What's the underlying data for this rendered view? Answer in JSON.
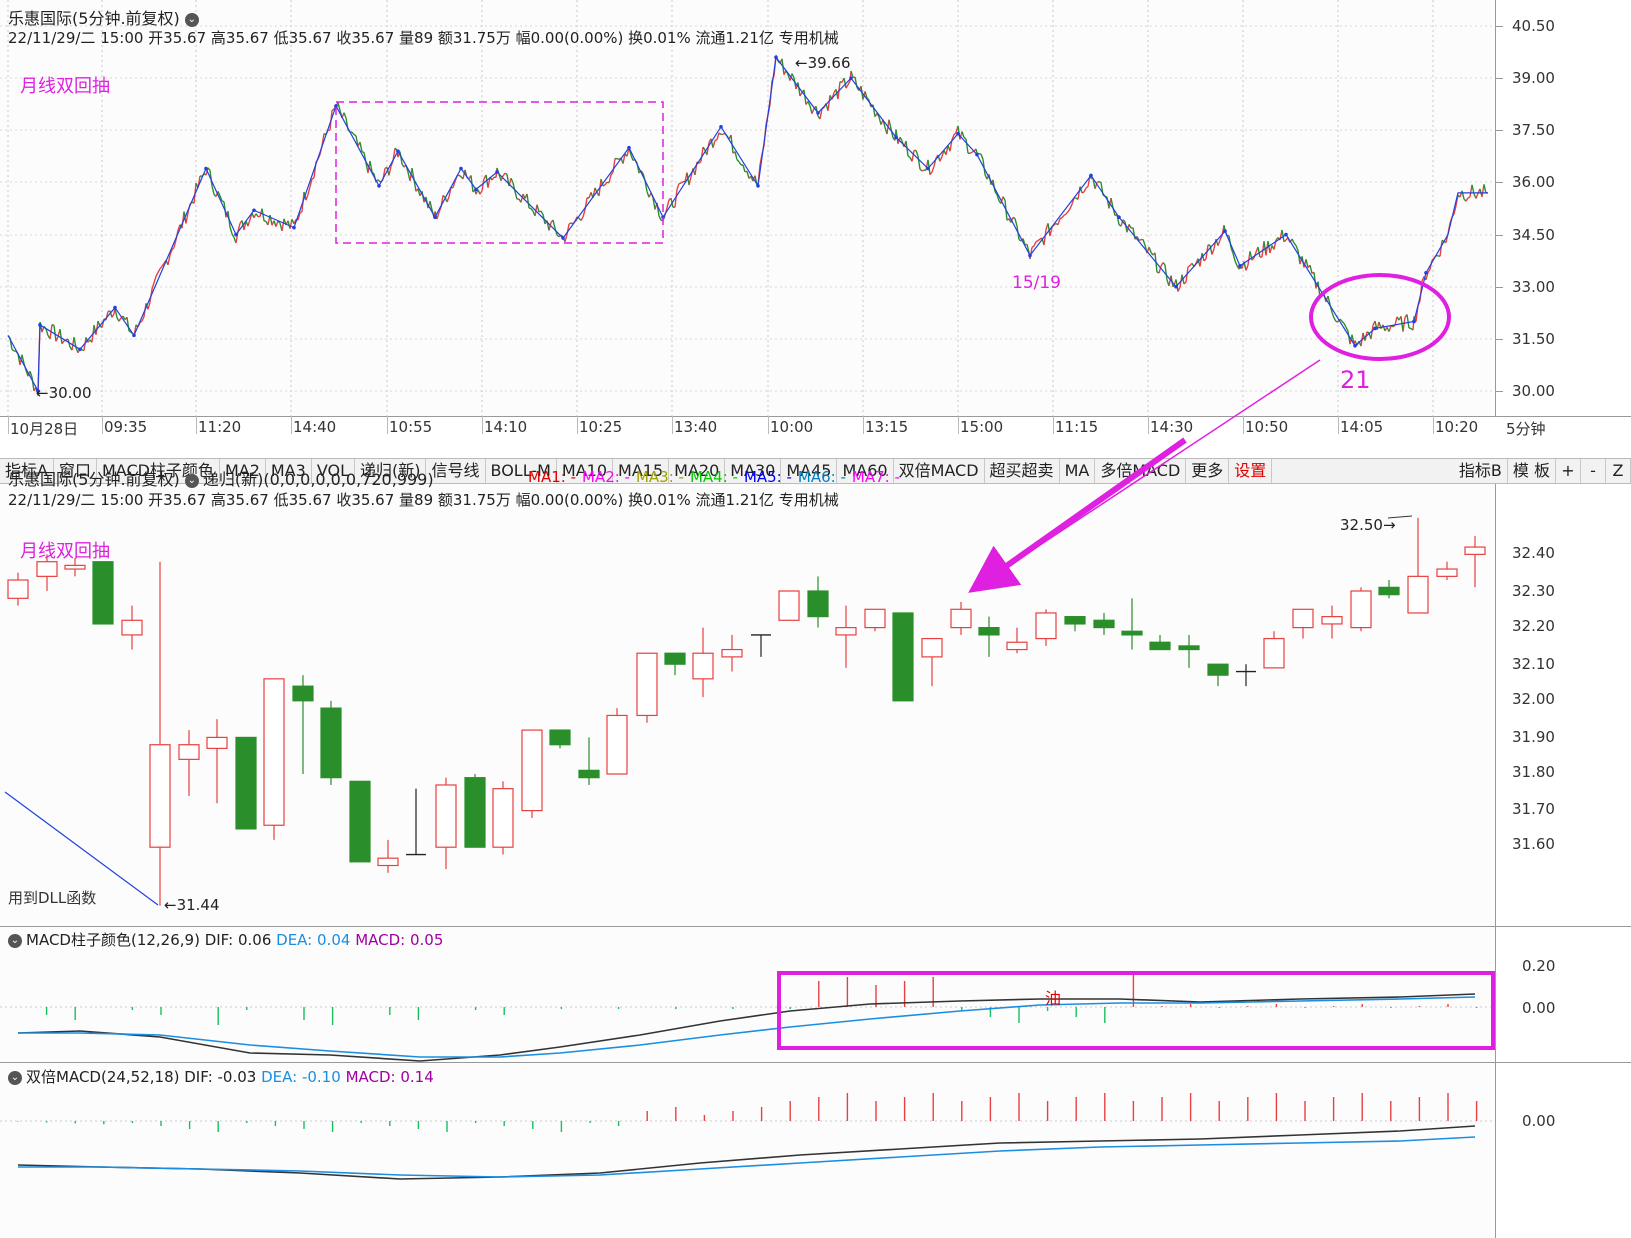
{
  "main_chart": {
    "stock_name": "乐惠国际",
    "period_label": "(5分钟.前复权)",
    "info_line": "22/11/29/二 15:00 开35.67 高35.67 低35.67 收35.67 量89 额31.75万 幅0.00(0.00%) 换0.01% 流通1.21亿 专用机械",
    "annotation_title": "月线双回抽",
    "high_label": "39.66",
    "low_label": "30.00",
    "wave_label": "15/19",
    "circle_label": "21",
    "y_ticks": [
      "40.50",
      "39.00",
      "37.50",
      "36.00",
      "34.50",
      "33.00",
      "31.50",
      "30.00"
    ],
    "x_ticks": [
      "10月28日",
      "09:35",
      "11:20",
      "14:40",
      "10:55",
      "14:10",
      "10:25",
      "13:40",
      "10:00",
      "13:15",
      "15:00",
      "11:15",
      "14:30",
      "10:50",
      "14:05",
      "10:20"
    ],
    "period_button": "5分钟"
  },
  "toolbar": {
    "tabs": [
      "指标A",
      "窗口",
      "MACD柱子颜色",
      "MA2",
      "MA3",
      "VOL",
      "递归(新)",
      "信号线",
      "BOLL-M",
      "MA10",
      "MA15",
      "MA20",
      "MA30",
      "MA45",
      "MA60",
      "双倍MACD",
      "超买超卖",
      "MA",
      "多倍MACD",
      "更多",
      "设置"
    ],
    "right_tabs": [
      "指标B",
      "模 板",
      "+",
      "-",
      "Z"
    ]
  },
  "zoom_chart": {
    "stock_name": "乐惠国际",
    "period_label": "(5分钟.前复权)",
    "indicator": "递归(新)(0,0,0,0,0,0,720,999)",
    "ma_legend": [
      {
        "label": "MA1: -",
        "color": "#e00000"
      },
      {
        "label": "MA2: -",
        "color": "#ff00ff"
      },
      {
        "label": "MA3: -",
        "color": "#a0a000"
      },
      {
        "label": "MA4: -",
        "color": "#00cc00"
      },
      {
        "label": "MA5: -",
        "color": "#0000ff"
      },
      {
        "label": "MA6: -",
        "color": "#0080c0"
      },
      {
        "label": "MA7: -",
        "color": "#ff00ff"
      }
    ],
    "info_line": "22/11/29/二 15:00 开35.67 高35.67 低35.67 收35.67 量89 额31.75万 幅0.00(0.00%) 换0.01% 流通1.21亿 专用机械",
    "annotation_title": "月线双回抽",
    "high_label": "32.50",
    "low_label": "31.44",
    "dll_note": "用到DLL函数",
    "y_ticks": [
      "32.40",
      "32.30",
      "32.20",
      "32.10",
      "32.00",
      "31.90",
      "31.80",
      "31.70",
      "31.60"
    ]
  },
  "macd1": {
    "title": "MACD柱子颜色(12,26,9)",
    "dif": "DIF: 0.06",
    "dea": "DEA: 0.04",
    "macd": "MACD: 0.05",
    "note": "油",
    "y_ticks": [
      "0.20",
      "0.00"
    ]
  },
  "macd2": {
    "title": "双倍MACD(24,52,18)",
    "dif": "DIF: -0.03",
    "dea": "DEA: -0.10",
    "macd": "MACD: 0.14",
    "y_ticks": [
      "0.00"
    ]
  },
  "colors": {
    "up": "#e84040",
    "down": "#2a8f2a",
    "zigzag": "#2040e0",
    "annotation": "#e020e0",
    "dea": "#1a8ee0",
    "dif": "#333333"
  }
}
